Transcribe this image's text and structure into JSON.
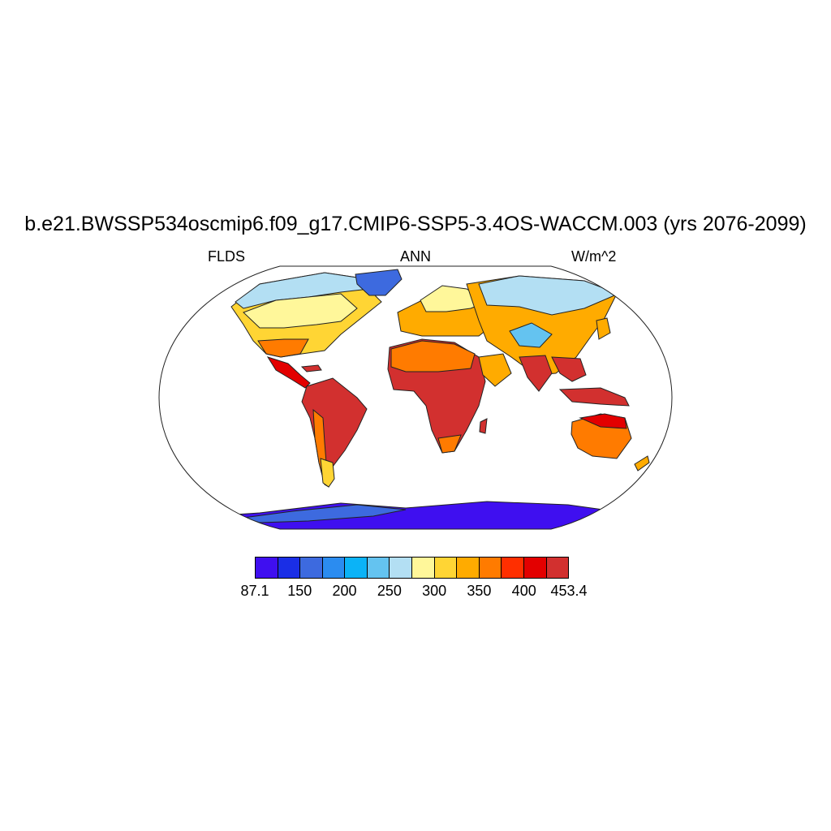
{
  "title": "b.e21.BWSSP534oscmip6.f09_g17.CMIP6-SSP5-3.4OS-WACCM.003 (yrs 2076-2099)",
  "left_label": "FLDS",
  "center_label": "ANN",
  "right_label": "W/m^2",
  "map": {
    "projection": "Robinson",
    "variable": "FLDS",
    "season": "ANN",
    "units": "W/m^2",
    "value_range": [
      87.1,
      453.4
    ]
  },
  "colorbar": {
    "colors": [
      "#3f0ff0",
      "#1a2ee6",
      "#3d6adf",
      "#2b8cf0",
      "#0bb3f7",
      "#64c3f0",
      "#b3dff3",
      "#fff79a",
      "#ffd534",
      "#ffab00",
      "#ff7b00",
      "#ff2f00",
      "#e30000",
      "#d2302f"
    ],
    "labels": [
      "87.1",
      "150",
      "200",
      "250",
      "300",
      "350",
      "400",
      "453.4"
    ]
  }
}
